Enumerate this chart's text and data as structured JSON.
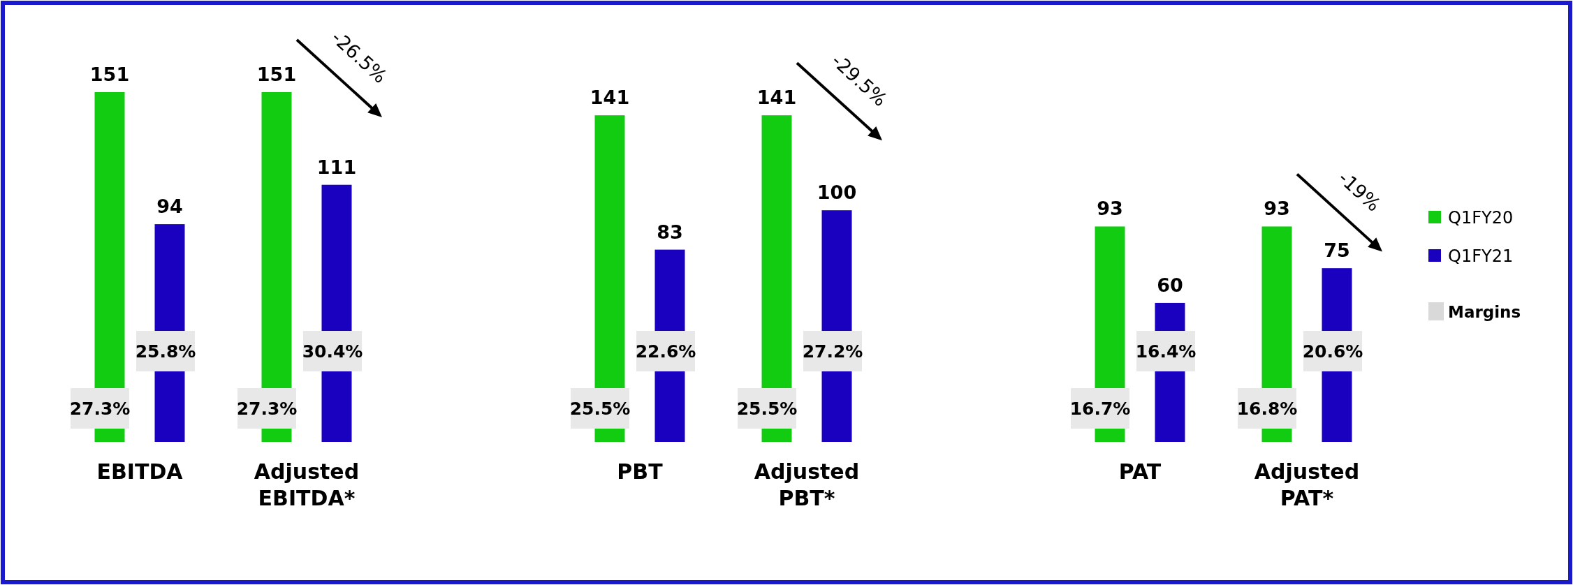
{
  "chart_data": {
    "type": "bar",
    "categories": [
      "EBITDA",
      "Adjusted EBITDA*",
      "PBT",
      "Adjusted PBT*",
      "PAT",
      "Adjusted PAT*"
    ],
    "series": [
      {
        "name": "Q1FY20",
        "color": "#11cc11",
        "values": [
          151,
          151,
          141,
          141,
          93,
          93
        ]
      },
      {
        "name": "Q1FY21",
        "color": "#1a00bf",
        "values": [
          94,
          111,
          83,
          100,
          60,
          75
        ]
      }
    ],
    "data_labels": true,
    "legend": "right",
    "legend_title": "Margins",
    "annotations": [
      "27.3%",
      "25.8%",
      "27.3%",
      "30.4%",
      "25.5%",
      "22.6%",
      "25.5%",
      "27.2%",
      "16.7%",
      "16.4%",
      "16.8%",
      "20.6%",
      "-26.5%",
      "-29.5%",
      "-19%"
    ]
  }
}
